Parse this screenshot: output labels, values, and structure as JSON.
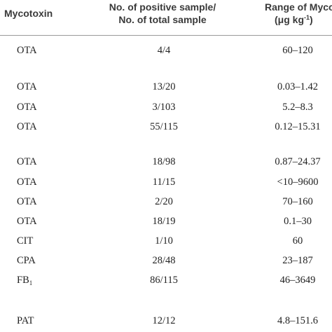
{
  "table": {
    "header": {
      "mycotoxin": "Mycotoxin",
      "ratio_line1": "No. of positive sample/",
      "ratio_line2": "No. of total sample",
      "range_line1": "Range of Mycoto",
      "range_unit": "(μg kg",
      "range_unit_sup": "-1",
      "range_unit_end": ")"
    },
    "rows": [
      {
        "mycotoxin": "OTA",
        "ratio": "4/4",
        "range": "60–120"
      },
      {
        "mycotoxin": "OTA",
        "ratio": "13/20",
        "range": "0.03–1.42"
      },
      {
        "mycotoxin": "OTA",
        "ratio": "3/103",
        "range": "5.2–8.3"
      },
      {
        "mycotoxin": "OTA",
        "ratio": "55/115",
        "range": "0.12–15.31"
      },
      {
        "mycotoxin": "OTA",
        "ratio": "18/98",
        "range": "0.87–24.37"
      },
      {
        "mycotoxin": "OTA",
        "ratio": "11/15",
        "range": "<10–9600"
      },
      {
        "mycotoxin": "OTA",
        "ratio": "2/20",
        "range": "70–160"
      },
      {
        "mycotoxin": "OTA",
        "ratio": "18/19",
        "range": "0.1–30"
      },
      {
        "mycotoxin": "CIT",
        "ratio": "1/10",
        "range": "60"
      },
      {
        "mycotoxin": "CPA",
        "ratio": "28/48",
        "range": "23–187"
      },
      {
        "mycotoxin": "FB",
        "mycotoxin_sub": "1",
        "ratio": "86/115",
        "range": "46–3649"
      },
      {
        "mycotoxin": "PAT",
        "ratio": "12/12",
        "range": "4.8–151.6"
      }
    ]
  }
}
